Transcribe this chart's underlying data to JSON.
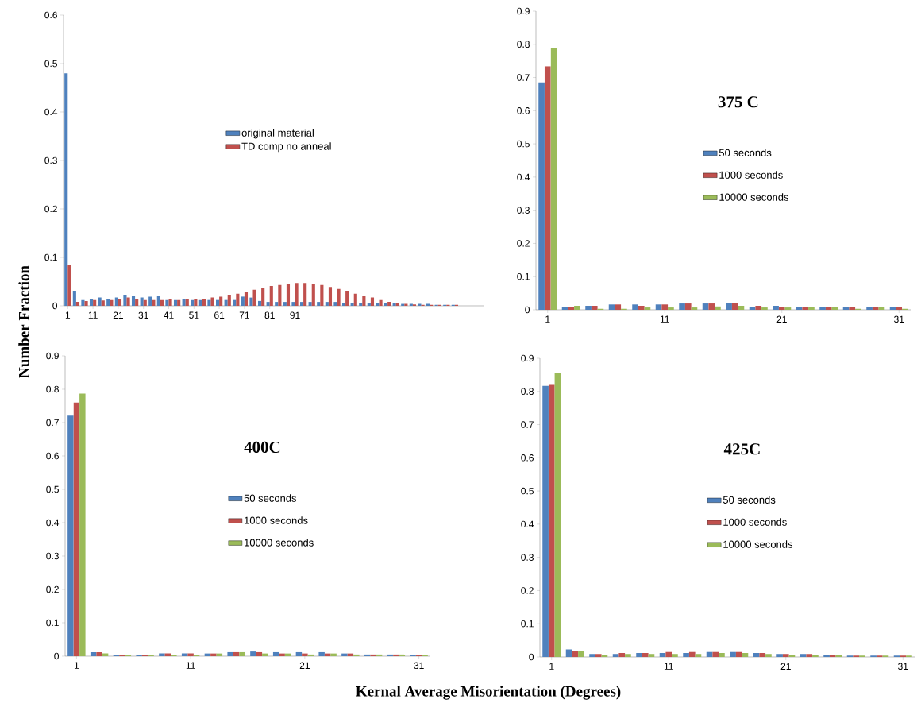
{
  "chart_data": [
    {
      "type": "bar",
      "ylabel": "Number Fraction",
      "categories": [
        "1",
        null,
        null,
        "11",
        null,
        null,
        "21",
        null,
        null,
        "31",
        null,
        null,
        "41",
        null,
        null,
        "51",
        null,
        null,
        "61",
        null,
        null,
        "71",
        null,
        null,
        "81",
        null,
        null,
        "91",
        null,
        null,
        null,
        null,
        null,
        null,
        null,
        null,
        null,
        null,
        null,
        null,
        null,
        null,
        null,
        null,
        null,
        null,
        null,
        null,
        null,
        null
      ],
      "series": [
        {
          "name": "original material",
          "color": "#4f81bd",
          "values": [
            0.48,
            0.031,
            0.012,
            0.014,
            0.017,
            0.014,
            0.017,
            0.023,
            0.021,
            0.017,
            0.019,
            0.021,
            0.012,
            0.012,
            0.014,
            0.012,
            0.012,
            0.012,
            0.012,
            0.012,
            0.012,
            0.019,
            0.017,
            0.01,
            0.008,
            0.008,
            0.008,
            0.008,
            0.008,
            0.008,
            0.008,
            0.008,
            0.008,
            0.006,
            0.006,
            0.006,
            0.006,
            0.006,
            0.006,
            0.005,
            0.004,
            0.004,
            0.004,
            0.004,
            0.002,
            0.002,
            0.002,
            null,
            null,
            null
          ]
        },
        {
          "name": "TD comp no anneal",
          "color": "#c0504d",
          "values": [
            0.085,
            0.008,
            0.01,
            0.012,
            0.011,
            0.012,
            0.014,
            0.017,
            0.014,
            0.012,
            0.012,
            0.012,
            0.014,
            0.012,
            0.014,
            0.014,
            0.014,
            0.017,
            0.019,
            0.023,
            0.025,
            0.029,
            0.033,
            0.037,
            0.041,
            0.043,
            0.045,
            0.047,
            0.047,
            0.045,
            0.043,
            0.039,
            0.035,
            0.031,
            0.025,
            0.021,
            0.017,
            0.012,
            0.008,
            0.006,
            0.004,
            0.003,
            0.002,
            0.002,
            0.002,
            0.002,
            0.002,
            null,
            null,
            null
          ]
        }
      ],
      "ylim": [
        0,
        0.6
      ],
      "yticks": [
        0,
        0.1,
        0.2,
        0.3,
        0.4,
        0.5,
        0.6
      ],
      "legend": "center"
    },
    {
      "type": "bar",
      "title": "375 C",
      "categories": [
        "1",
        null,
        null,
        null,
        null,
        "11",
        null,
        null,
        null,
        null,
        "21",
        null,
        null,
        null,
        null,
        "31"
      ],
      "series": [
        {
          "name": "50 seconds",
          "color": "#4f81bd",
          "values": [
            0.686,
            0.009,
            0.012,
            0.016,
            0.016,
            0.016,
            0.019,
            0.019,
            0.021,
            0.009,
            0.012,
            0.009,
            0.009,
            0.009,
            0.007,
            0.007
          ]
        },
        {
          "name": "1000 seconds",
          "color": "#c0504d",
          "values": [
            0.734,
            0.009,
            0.012,
            0.016,
            0.012,
            0.016,
            0.019,
            0.019,
            0.021,
            0.012,
            0.009,
            0.009,
            0.009,
            0.007,
            0.007,
            0.007
          ]
        },
        {
          "name": "10000 seconds",
          "color": "#9bbb59",
          "values": [
            0.79,
            0.012,
            0.003,
            0.003,
            0.007,
            0.007,
            0.007,
            0.01,
            0.012,
            0.007,
            0.007,
            0.007,
            0.007,
            0.003,
            0.007,
            0.003
          ]
        }
      ],
      "ylim": [
        0,
        0.9
      ],
      "yticks": [
        0,
        0.1,
        0.2,
        0.3,
        0.4,
        0.5,
        0.6,
        0.7,
        0.8,
        0.9
      ],
      "legend": "center"
    },
    {
      "type": "bar",
      "title": "400C",
      "xlabel": "Kernal Average Misorientation (Degrees)",
      "categories": [
        "1",
        null,
        null,
        null,
        null,
        "11",
        null,
        null,
        null,
        null,
        "21",
        null,
        null,
        null,
        null,
        "31"
      ],
      "series": [
        {
          "name": "50 seconds",
          "color": "#4f81bd",
          "values": [
            0.721,
            0.012,
            0.005,
            0.005,
            0.008,
            0.008,
            0.008,
            0.012,
            0.014,
            0.012,
            0.012,
            0.012,
            0.008,
            0.005,
            0.005,
            0.005
          ]
        },
        {
          "name": "1000 seconds",
          "color": "#c0504d",
          "values": [
            0.76,
            0.012,
            0.003,
            0.005,
            0.008,
            0.008,
            0.008,
            0.012,
            0.012,
            0.008,
            0.008,
            0.008,
            0.008,
            0.005,
            0.005,
            0.005
          ]
        },
        {
          "name": "10000 seconds",
          "color": "#9bbb59",
          "values": [
            0.787,
            0.008,
            0.003,
            0.005,
            0.005,
            0.005,
            0.008,
            0.012,
            0.008,
            0.008,
            0.005,
            0.008,
            0.005,
            0.005,
            0.005,
            0.005
          ]
        }
      ],
      "ylim": [
        0,
        0.9
      ],
      "yticks": [
        0,
        0.1,
        0.2,
        0.3,
        0.4,
        0.5,
        0.6,
        0.7,
        0.8,
        0.9
      ],
      "legend": "center"
    },
    {
      "type": "bar",
      "title": "425C",
      "categories": [
        "1",
        null,
        null,
        null,
        null,
        "11",
        null,
        null,
        null,
        null,
        "21",
        null,
        null,
        null,
        null,
        "31"
      ],
      "series": [
        {
          "name": "50 seconds",
          "color": "#4f81bd",
          "values": [
            0.817,
            0.023,
            0.009,
            0.009,
            0.012,
            0.012,
            0.012,
            0.015,
            0.015,
            0.012,
            0.009,
            0.009,
            0.005,
            0.004,
            0.004,
            0.004
          ]
        },
        {
          "name": "1000 seconds",
          "color": "#c0504d",
          "values": [
            0.82,
            0.017,
            0.009,
            0.012,
            0.012,
            0.015,
            0.015,
            0.015,
            0.015,
            0.012,
            0.009,
            0.009,
            0.005,
            0.004,
            0.004,
            0.004
          ]
        },
        {
          "name": "10000 seconds",
          "color": "#9bbb59",
          "values": [
            0.857,
            0.017,
            0.005,
            0.009,
            0.009,
            0.009,
            0.009,
            0.012,
            0.012,
            0.009,
            0.005,
            0.005,
            0.005,
            0.004,
            0.004,
            0.004
          ]
        }
      ],
      "ylim": [
        0,
        0.9
      ],
      "yticks": [
        0,
        0.1,
        0.2,
        0.3,
        0.4,
        0.5,
        0.6,
        0.7,
        0.8,
        0.9
      ],
      "legend": "center"
    }
  ]
}
